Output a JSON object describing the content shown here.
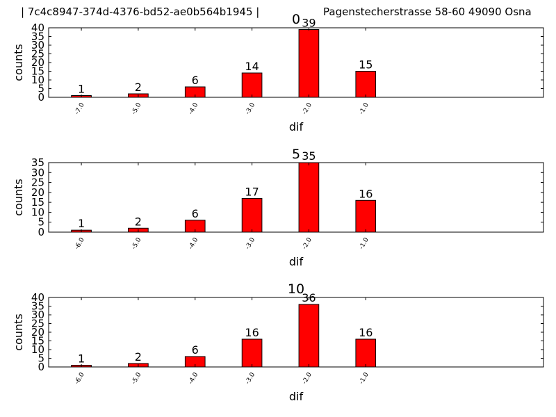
{
  "header": {
    "id_text": "| 7c4c8947-374d-4376-bd52-ae0b564b1945 |",
    "address_text": "Pagenstecherstrasse 58-60 49090 Osna"
  },
  "colors": {
    "bar": "#ff0000",
    "bar_edge": "#000000"
  },
  "chart_data": [
    {
      "type": "bar",
      "title": "0",
      "xlabel": "dif",
      "ylabel": "counts",
      "categories": [
        "-7.0",
        "-5.0",
        "-4.0",
        "-3.0",
        "-2.0",
        "-1.0"
      ],
      "values": [
        1,
        2,
        6,
        14,
        39,
        15
      ],
      "ylim": [
        0,
        40
      ],
      "yticks": [
        0,
        5,
        10,
        15,
        20,
        25,
        30,
        35,
        40
      ],
      "grid": false
    },
    {
      "type": "bar",
      "title": "5",
      "xlabel": "dif",
      "ylabel": "counts",
      "categories": [
        "-6.0",
        "-5.0",
        "-4.0",
        "-3.0",
        "-2.0",
        "-1.0"
      ],
      "values": [
        1,
        2,
        6,
        17,
        35,
        16
      ],
      "ylim": [
        0,
        35
      ],
      "yticks": [
        0,
        5,
        10,
        15,
        20,
        25,
        30,
        35
      ],
      "grid": false
    },
    {
      "type": "bar",
      "title": "10",
      "xlabel": "dif",
      "ylabel": "counts",
      "categories": [
        "-6.0",
        "-5.0",
        "-4.0",
        "-3.0",
        "-2.0",
        "-1.0"
      ],
      "values": [
        1,
        2,
        6,
        16,
        36,
        16
      ],
      "ylim": [
        0,
        40
      ],
      "yticks": [
        0,
        5,
        10,
        15,
        20,
        25,
        30,
        35,
        40
      ],
      "grid": false
    }
  ]
}
